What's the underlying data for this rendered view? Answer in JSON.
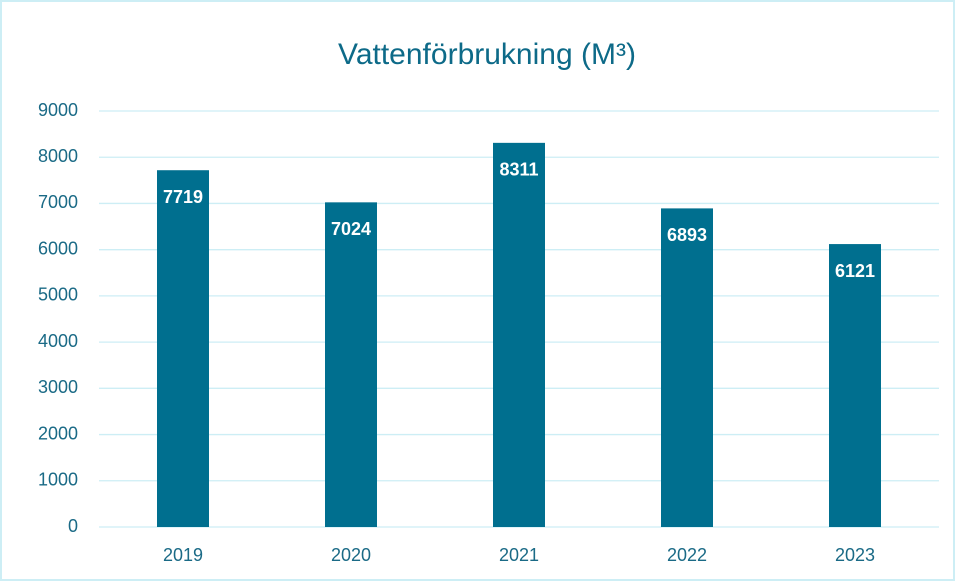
{
  "chart_data": {
    "type": "bar",
    "title": "Vattenförbrukning (M³)",
    "categories": [
      "2019",
      "2020",
      "2021",
      "2022",
      "2023"
    ],
    "values": [
      7719,
      7024,
      8311,
      6893,
      6121
    ],
    "color": "#006f8f",
    "ylim": [
      0,
      9000
    ],
    "yticks": [
      0,
      1000,
      2000,
      3000,
      4000,
      5000,
      6000,
      7000,
      8000,
      9000
    ],
    "grid": true
  }
}
